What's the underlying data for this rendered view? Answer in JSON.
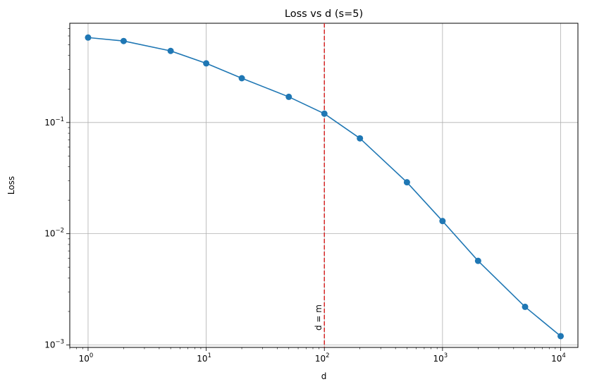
{
  "chart_data": {
    "type": "line",
    "title": "Loss vs d (s=5)",
    "xlabel": "d",
    "ylabel": "Loss",
    "xscale": "log",
    "yscale": "log",
    "xlim": [
      0.7,
      14000
    ],
    "ylim": [
      0.00095,
      0.78
    ],
    "grid": true,
    "x_ticks": [
      {
        "base": "10",
        "exp": "0",
        "value": 1
      },
      {
        "base": "10",
        "exp": "1",
        "value": 10
      },
      {
        "base": "10",
        "exp": "2",
        "value": 100
      },
      {
        "base": "10",
        "exp": "3",
        "value": 1000
      },
      {
        "base": "10",
        "exp": "4",
        "value": 10000
      }
    ],
    "y_ticks": [
      {
        "base": "10",
        "exp": "−1",
        "value": 0.1
      },
      {
        "base": "10",
        "exp": "−2",
        "value": 0.01
      },
      {
        "base": "10",
        "exp": "−3",
        "value": 0.001
      }
    ],
    "series": [
      {
        "color": "#1f77b4",
        "marker": "circle",
        "x": [
          1,
          2,
          5,
          10,
          20,
          50,
          100,
          200,
          500,
          1000,
          2000,
          5000,
          10000
        ],
        "y": [
          0.58,
          0.54,
          0.44,
          0.34,
          0.25,
          0.17,
          0.12,
          0.072,
          0.029,
          0.013,
          0.0057,
          0.0022,
          0.0012
        ]
      }
    ],
    "reference_line": {
      "x": 100,
      "label": "d = m",
      "color": "#d62728",
      "style": "dashed"
    }
  }
}
